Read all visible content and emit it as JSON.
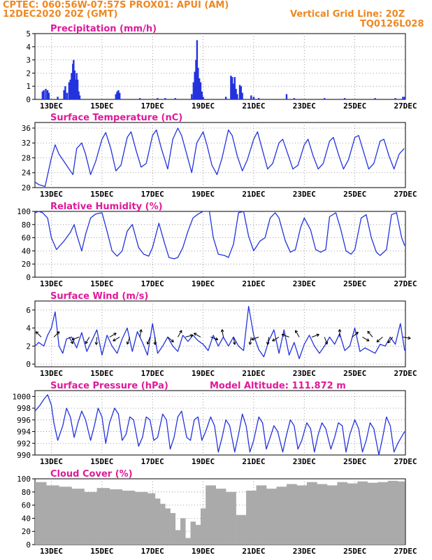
{
  "header": {
    "line1_left": "CPTEC:   060:56W-07:57S   PROX01: APUI (AM)",
    "line2_left": "12DEC2020 20Z (GMT)",
    "line2_right": "Vertical Grid Line: 20Z",
    "line3_right": "TQ0126L028",
    "color": "#ee8822"
  },
  "colors": {
    "title": "#e0199b",
    "line": "#2233dd",
    "bar": "#2233dd",
    "cloud": "#aaaaaa",
    "grid": "#888888"
  },
  "chart_data": [
    {
      "id": "precip",
      "type": "bar",
      "title": "Precipitation (mm/h)",
      "yticks": [
        0,
        1,
        2,
        3,
        4,
        5
      ],
      "ylim": [
        0,
        5
      ],
      "xticks": [
        "13DEC",
        "15DEC",
        "17DEC",
        "19DEC",
        "21DEC",
        "23DEC",
        "25DEC",
        "27DEC"
      ],
      "x_start_day": 12.35,
      "x_end_day": 27.0,
      "events": [
        [
          12.65,
          0.6
        ],
        [
          12.7,
          0.7
        ],
        [
          12.78,
          0.8
        ],
        [
          12.85,
          0.7
        ],
        [
          12.9,
          0.5
        ],
        [
          13.25,
          0.2
        ],
        [
          13.5,
          0.7
        ],
        [
          13.55,
          1.0
        ],
        [
          13.62,
          0.5
        ],
        [
          13.7,
          1.3
        ],
        [
          13.75,
          1.5
        ],
        [
          13.8,
          2.0
        ],
        [
          13.85,
          2.7
        ],
        [
          13.88,
          3.0
        ],
        [
          13.92,
          2.2
        ],
        [
          13.96,
          1.5
        ],
        [
          14.0,
          2.0
        ],
        [
          14.04,
          1.5
        ],
        [
          14.08,
          0.6
        ],
        [
          14.12,
          0.3
        ],
        [
          15.55,
          0.4
        ],
        [
          15.6,
          0.6
        ],
        [
          15.65,
          0.7
        ],
        [
          15.7,
          0.5
        ],
        [
          16.5,
          0.1
        ],
        [
          17.2,
          0.1
        ],
        [
          17.5,
          0.1
        ],
        [
          17.9,
          0.1
        ],
        [
          18.55,
          0.4
        ],
        [
          18.62,
          1.3
        ],
        [
          18.67,
          2.1
        ],
        [
          18.72,
          3.0
        ],
        [
          18.76,
          4.5
        ],
        [
          18.8,
          2.4
        ],
        [
          18.85,
          1.6
        ],
        [
          18.9,
          1.3
        ],
        [
          18.95,
          0.6
        ],
        [
          19.0,
          0.2
        ],
        [
          19.9,
          0.2
        ],
        [
          20.1,
          1.8
        ],
        [
          20.15,
          1.7
        ],
        [
          20.2,
          1.2
        ],
        [
          20.25,
          1.7
        ],
        [
          20.3,
          0.8
        ],
        [
          20.35,
          0.4
        ],
        [
          20.45,
          1.1
        ],
        [
          20.5,
          1.0
        ],
        [
          20.55,
          0.5
        ],
        [
          20.9,
          0.3
        ],
        [
          21.0,
          0.2
        ],
        [
          21.2,
          0.1
        ],
        [
          22.3,
          0.4
        ],
        [
          22.6,
          0.1
        ],
        [
          23.8,
          0.1
        ],
        [
          24.6,
          0.1
        ],
        [
          25.8,
          0.1
        ],
        [
          26.6,
          0.1
        ],
        [
          26.9,
          0.2
        ],
        [
          26.97,
          0.2
        ]
      ]
    },
    {
      "id": "temp",
      "type": "line",
      "title": "Surface Temperature (nC)",
      "yticks": [
        20,
        24,
        28,
        32,
        36
      ],
      "ylim": [
        20,
        37.5
      ],
      "xticks": [
        "13DEC",
        "15DEC",
        "17DEC",
        "19DEC",
        "21DEC",
        "23DEC",
        "25DEC",
        "27DEC"
      ],
      "x": [
        12.35,
        12.5,
        12.75,
        13.0,
        13.15,
        13.3,
        13.5,
        13.75,
        13.85,
        14.0,
        14.2,
        14.35,
        14.55,
        14.75,
        15.0,
        15.15,
        15.35,
        15.55,
        15.75,
        16.0,
        16.15,
        16.35,
        16.55,
        16.75,
        17.0,
        17.15,
        17.35,
        17.6,
        17.8,
        18.0,
        18.15,
        18.35,
        18.55,
        18.75,
        19.0,
        19.15,
        19.35,
        19.55,
        19.75,
        20.0,
        20.15,
        20.35,
        20.55,
        20.75,
        21.0,
        21.15,
        21.35,
        21.55,
        21.75,
        22.0,
        22.15,
        22.35,
        22.55,
        22.75,
        23.0,
        23.15,
        23.35,
        23.55,
        23.75,
        24.0,
        24.15,
        24.35,
        24.55,
        24.75,
        25.0,
        25.15,
        25.35,
        25.55,
        25.75,
        26.0,
        26.15,
        26.35,
        26.55,
        26.75,
        26.95
      ],
      "y": [
        21.5,
        20.8,
        20.3,
        28.0,
        31.5,
        29.0,
        27.0,
        24.5,
        23.5,
        30.5,
        32.0,
        29.0,
        23.5,
        27.0,
        33.0,
        34.8,
        30.5,
        24.5,
        26.0,
        33.5,
        35.0,
        30.0,
        25.5,
        26.5,
        34.0,
        35.5,
        30.5,
        25.0,
        33.0,
        36.0,
        34.0,
        29.0,
        24.0,
        32.0,
        35.0,
        31.5,
        26.0,
        23.5,
        28.0,
        35.5,
        34.0,
        28.5,
        24.5,
        27.5,
        33.0,
        35.0,
        30.0,
        25.0,
        26.5,
        32.0,
        33.0,
        29.0,
        25.0,
        26.0,
        31.5,
        33.0,
        28.5,
        25.0,
        26.5,
        32.5,
        33.5,
        29.0,
        25.0,
        27.5,
        33.5,
        34.0,
        29.5,
        25.0,
        26.5,
        32.5,
        33.0,
        28.5,
        25.0,
        29.0,
        30.5
      ]
    },
    {
      "id": "rh",
      "type": "line",
      "title": "Relative Humidity (%)",
      "yticks": [
        0,
        20,
        40,
        60,
        80,
        100
      ],
      "ylim": [
        0,
        100
      ],
      "xticks": [
        "13DEC",
        "15DEC",
        "17DEC",
        "19DEC",
        "21DEC",
        "23DEC",
        "25DEC",
        "27DEC"
      ],
      "x": [
        12.35,
        12.5,
        12.65,
        12.85,
        13.0,
        13.2,
        13.5,
        13.75,
        13.9,
        14.0,
        14.2,
        14.35,
        14.55,
        14.75,
        15.0,
        15.2,
        15.4,
        15.6,
        15.8,
        16.0,
        16.2,
        16.45,
        16.65,
        16.85,
        17.0,
        17.25,
        17.45,
        17.65,
        17.85,
        18.0,
        18.2,
        18.4,
        18.6,
        18.8,
        19.0,
        19.25,
        19.4,
        19.6,
        19.85,
        20.0,
        20.2,
        20.4,
        20.6,
        20.8,
        21.0,
        21.25,
        21.45,
        21.65,
        21.85,
        22.0,
        22.25,
        22.45,
        22.65,
        22.85,
        23.0,
        23.25,
        23.45,
        23.65,
        23.85,
        24.0,
        24.25,
        24.45,
        24.65,
        24.85,
        25.0,
        25.25,
        25.45,
        25.65,
        25.85,
        26.0,
        26.25,
        26.45,
        26.65,
        26.85,
        26.97
      ],
      "y": [
        98,
        100,
        98,
        90,
        60,
        42,
        55,
        68,
        80,
        65,
        40,
        65,
        90,
        96,
        98,
        70,
        40,
        32,
        40,
        70,
        80,
        45,
        35,
        32,
        45,
        82,
        55,
        30,
        28,
        30,
        45,
        70,
        90,
        96,
        100,
        100,
        60,
        35,
        33,
        30,
        50,
        98,
        100,
        62,
        40,
        55,
        60,
        90,
        98,
        90,
        55,
        38,
        42,
        75,
        90,
        72,
        42,
        38,
        42,
        92,
        98,
        72,
        40,
        35,
        42,
        90,
        95,
        60,
        38,
        33,
        42,
        95,
        98,
        60,
        48
      ]
    },
    {
      "id": "wind",
      "type": "line",
      "title": "Surface Wind (m/s)",
      "yticks": [
        0,
        2,
        4,
        6
      ],
      "ylim": [
        -0.3,
        7
      ],
      "xticks": [
        "13DEC",
        "15DEC",
        "17DEC",
        "19DEC",
        "21DEC",
        "23DEC",
        "25DEC",
        "27DEC"
      ],
      "x": [
        12.35,
        12.5,
        12.7,
        12.85,
        13.0,
        13.15,
        13.3,
        13.45,
        13.6,
        13.8,
        14.0,
        14.2,
        14.4,
        14.6,
        14.8,
        15.0,
        15.2,
        15.4,
        15.6,
        15.8,
        16.0,
        16.2,
        16.4,
        16.6,
        16.8,
        17.0,
        17.2,
        17.4,
        17.6,
        17.8,
        18.0,
        18.2,
        18.4,
        18.6,
        18.8,
        19.0,
        19.2,
        19.4,
        19.6,
        19.8,
        20.0,
        20.2,
        20.4,
        20.6,
        20.8,
        21.0,
        21.2,
        21.4,
        21.6,
        21.8,
        22.0,
        22.2,
        22.4,
        22.6,
        22.8,
        23.0,
        23.2,
        23.4,
        23.6,
        23.8,
        24.0,
        24.2,
        24.4,
        24.6,
        24.8,
        25.0,
        25.2,
        25.4,
        25.6,
        25.8,
        26.0,
        26.2,
        26.4,
        26.6,
        26.8,
        26.97
      ],
      "y": [
        2.0,
        2.4,
        2.0,
        3.2,
        4.0,
        5.8,
        2.0,
        1.2,
        2.8,
        3.0,
        1.8,
        3.5,
        1.4,
        2.6,
        3.8,
        1.0,
        3.2,
        2.0,
        1.2,
        2.8,
        4.0,
        1.4,
        3.6,
        2.4,
        1.0,
        4.5,
        1.2,
        2.0,
        3.0,
        2.0,
        1.4,
        3.2,
        2.5,
        3.2,
        2.6,
        2.2,
        1.5,
        3.2,
        2.0,
        3.0,
        2.0,
        3.0,
        2.0,
        1.5,
        6.4,
        3.2,
        1.6,
        0.8,
        2.6,
        3.8,
        1.2,
        3.8,
        1.0,
        2.4,
        0.6,
        2.2,
        3.2,
        2.0,
        1.2,
        2.0,
        3.0,
        2.2,
        3.4,
        1.5,
        2.0,
        4.0,
        1.4,
        1.8,
        1.5,
        1.2,
        2.2,
        2.0,
        3.0,
        2.2,
        4.5,
        1.5
      ]
    },
    {
      "id": "pressure",
      "type": "line",
      "title": "Surface Pressure (hPa)",
      "annotation": "Model Altitude: 111.872 m",
      "yticks": [
        990,
        992,
        994,
        996,
        998,
        1000
      ],
      "ylim": [
        990,
        1001
      ],
      "xticks": [
        "13DEC",
        "15DEC",
        "17DEC",
        "19DEC",
        "21DEC",
        "23DEC",
        "25DEC",
        "27DEC"
      ],
      "x": [
        12.35,
        12.55,
        12.7,
        12.85,
        13.0,
        13.1,
        13.25,
        13.45,
        13.6,
        13.75,
        13.9,
        14.05,
        14.2,
        14.35,
        14.55,
        14.7,
        14.85,
        15.0,
        15.15,
        15.3,
        15.5,
        15.65,
        15.8,
        15.95,
        16.1,
        16.25,
        16.45,
        16.6,
        16.75,
        16.9,
        17.05,
        17.2,
        17.4,
        17.55,
        17.7,
        17.85,
        18.0,
        18.15,
        18.35,
        18.5,
        18.65,
        18.8,
        18.95,
        19.1,
        19.3,
        19.45,
        19.6,
        19.75,
        19.9,
        20.05,
        20.25,
        20.4,
        20.55,
        20.7,
        20.85,
        21.0,
        21.2,
        21.35,
        21.5,
        21.65,
        21.8,
        21.95,
        22.15,
        22.3,
        22.45,
        22.6,
        22.75,
        22.9,
        23.1,
        23.25,
        23.4,
        23.55,
        23.7,
        23.85,
        24.05,
        24.2,
        24.35,
        24.5,
        24.65,
        24.8,
        25.0,
        25.15,
        25.3,
        25.45,
        25.6,
        25.75,
        25.95,
        26.1,
        26.25,
        26.4,
        26.55,
        26.7,
        26.9,
        26.97
      ],
      "y": [
        997.5,
        998.5,
        999.5,
        1000.3,
        998.5,
        995.5,
        992.5,
        995.0,
        998.0,
        996.5,
        993.0,
        995.5,
        997.5,
        996.0,
        992.5,
        995.0,
        998.0,
        996.5,
        992.0,
        995.5,
        998.0,
        997.0,
        992.5,
        993.5,
        996.5,
        996.0,
        991.5,
        993.0,
        996.5,
        996.0,
        992.5,
        993.0,
        997.0,
        996.0,
        991.0,
        993.0,
        996.5,
        997.5,
        993.0,
        992.5,
        996.0,
        996.5,
        992.5,
        994.0,
        996.5,
        995.0,
        990.5,
        993.0,
        996.0,
        995.0,
        990.5,
        993.5,
        997.0,
        995.0,
        990.5,
        992.5,
        996.5,
        995.5,
        991.0,
        993.0,
        995.0,
        994.0,
        990.5,
        993.5,
        996.0,
        995.0,
        991.0,
        992.5,
        995.5,
        994.5,
        990.5,
        993.5,
        995.5,
        994.5,
        991.0,
        993.0,
        995.5,
        995.0,
        990.5,
        993.5,
        996.0,
        994.5,
        990.5,
        992.5,
        995.5,
        994.5,
        990.0,
        993.0,
        996.5,
        995.0,
        990.5,
        992.0,
        993.5,
        994.0
      ]
    },
    {
      "id": "cloud",
      "type": "bar",
      "title": "Cloud Cover (%)",
      "yticks": [
        0,
        20,
        40,
        60,
        80,
        100
      ],
      "ylim": [
        0,
        100
      ],
      "xticks": [
        "13DEC",
        "15DEC",
        "17DEC",
        "19DEC",
        "21DEC",
        "23DEC",
        "25DEC",
        "27DEC"
      ],
      "x": [
        12.35,
        12.8,
        13.3,
        13.8,
        14.3,
        14.8,
        15.3,
        15.8,
        16.3,
        16.8,
        17.1,
        17.3,
        17.5,
        17.7,
        17.9,
        18.1,
        18.3,
        18.5,
        18.7,
        18.9,
        19.1,
        19.5,
        19.9,
        20.3,
        20.7,
        21.1,
        21.5,
        21.9,
        22.3,
        22.7,
        23.1,
        23.5,
        23.9,
        24.3,
        24.7,
        25.1,
        25.5,
        25.9,
        26.3,
        26.7,
        26.97
      ],
      "y": [
        95,
        90,
        88,
        85,
        80,
        86,
        84,
        82,
        80,
        78,
        70,
        62,
        55,
        48,
        22,
        40,
        10,
        35,
        30,
        55,
        90,
        85,
        80,
        45,
        82,
        90,
        85,
        88,
        92,
        90,
        95,
        92,
        90,
        95,
        93,
        96,
        94,
        95,
        97,
        96,
        98
      ]
    }
  ]
}
